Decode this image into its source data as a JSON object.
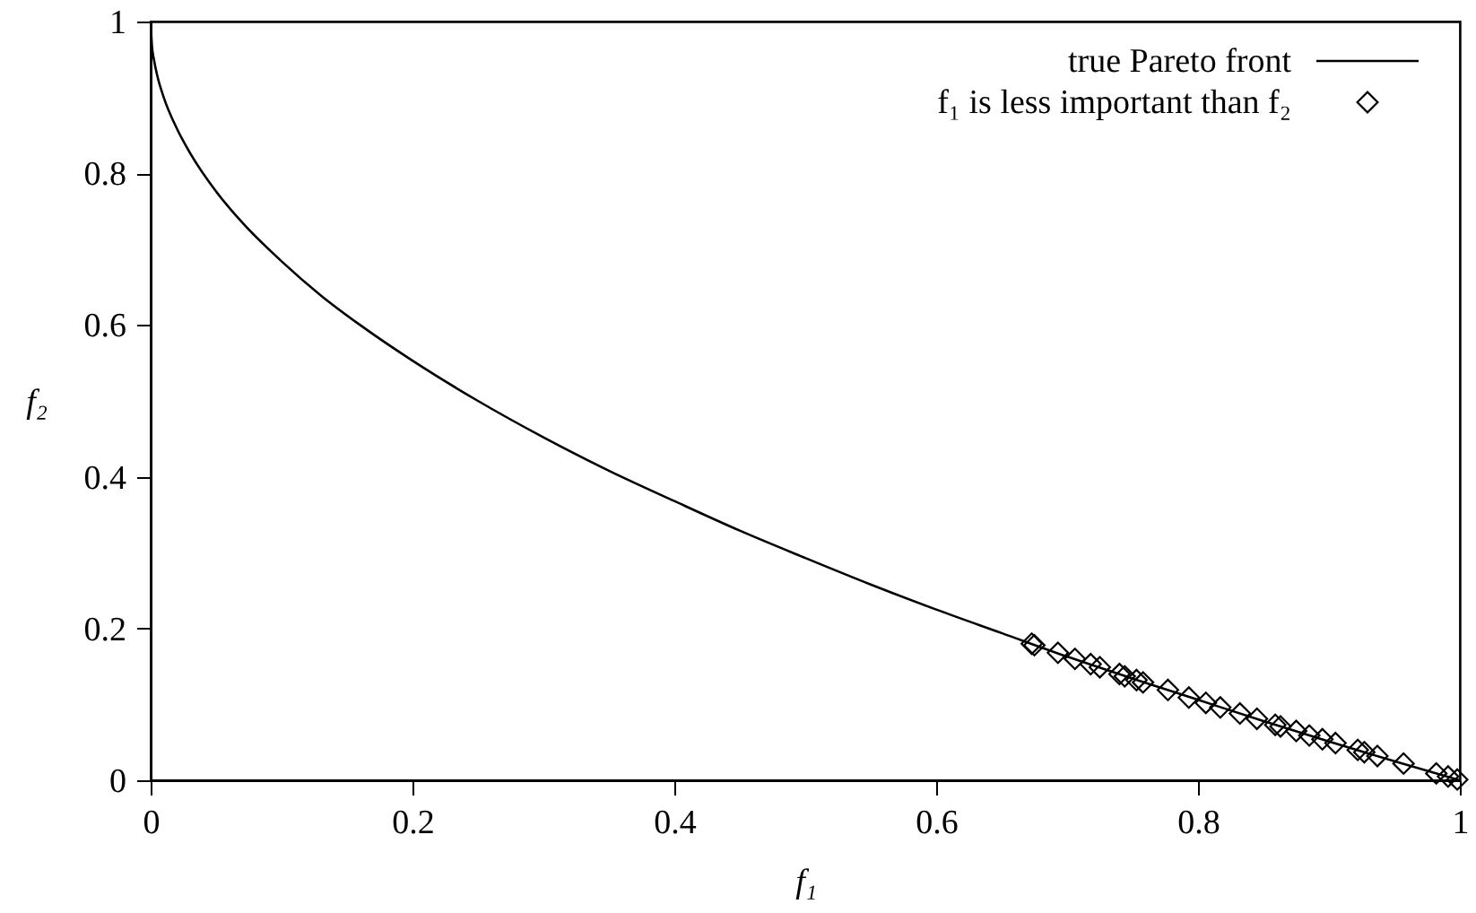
{
  "chart_data": {
    "type": "line",
    "xlabel": "f₁",
    "ylabel": "f₂",
    "xlim": [
      0,
      1
    ],
    "ylim": [
      0,
      1
    ],
    "xticks": [
      0,
      0.2,
      0.4,
      0.6,
      0.8,
      1
    ],
    "yticks": [
      0,
      0.2,
      0.4,
      0.6,
      0.8,
      1
    ],
    "grid": false,
    "legend": "top right",
    "series": [
      {
        "name": "true Pareto front",
        "color": "#000000",
        "line_style": "solid",
        "x": [
          0,
          0.001,
          0.0025,
          0.005,
          0.01,
          0.02,
          0.03,
          0.05,
          0.07,
          0.1,
          0.13,
          0.16,
          0.2,
          0.25,
          0.3,
          0.35,
          0.4,
          0.45,
          0.5,
          0.55,
          0.6,
          0.65,
          0.7,
          0.75,
          0.8,
          0.85,
          0.9,
          0.95,
          1
        ],
        "values": [
          1,
          0.968,
          0.95,
          0.929,
          0.9,
          0.859,
          0.827,
          0.776,
          0.735,
          0.684,
          0.639,
          0.6,
          0.553,
          0.5,
          0.452,
          0.408,
          0.368,
          0.329,
          0.293,
          0.258,
          0.225,
          0.194,
          0.163,
          0.134,
          0.106,
          0.078,
          0.051,
          0.025,
          0
        ]
      },
      {
        "name": "f₁ is less important than f₂",
        "type": "scatter",
        "color": "#000000",
        "marker": "diamond",
        "x": [
          0.673,
          0.675,
          0.693,
          0.706,
          0.718,
          0.725,
          0.74,
          0.744,
          0.753,
          0.758,
          0.777,
          0.793,
          0.806,
          0.817,
          0.832,
          0.845,
          0.859,
          0.863,
          0.875,
          0.885,
          0.895,
          0.905,
          0.922,
          0.927,
          0.937,
          0.957,
          0.982,
          0.991,
          0.998
        ],
        "values": [
          0.18,
          0.178,
          0.168,
          0.16,
          0.153,
          0.149,
          0.14,
          0.137,
          0.132,
          0.129,
          0.119,
          0.109,
          0.102,
          0.096,
          0.088,
          0.081,
          0.073,
          0.071,
          0.065,
          0.059,
          0.054,
          0.049,
          0.04,
          0.037,
          0.032,
          0.022,
          0.009,
          0.005,
          0.001
        ]
      }
    ]
  }
}
